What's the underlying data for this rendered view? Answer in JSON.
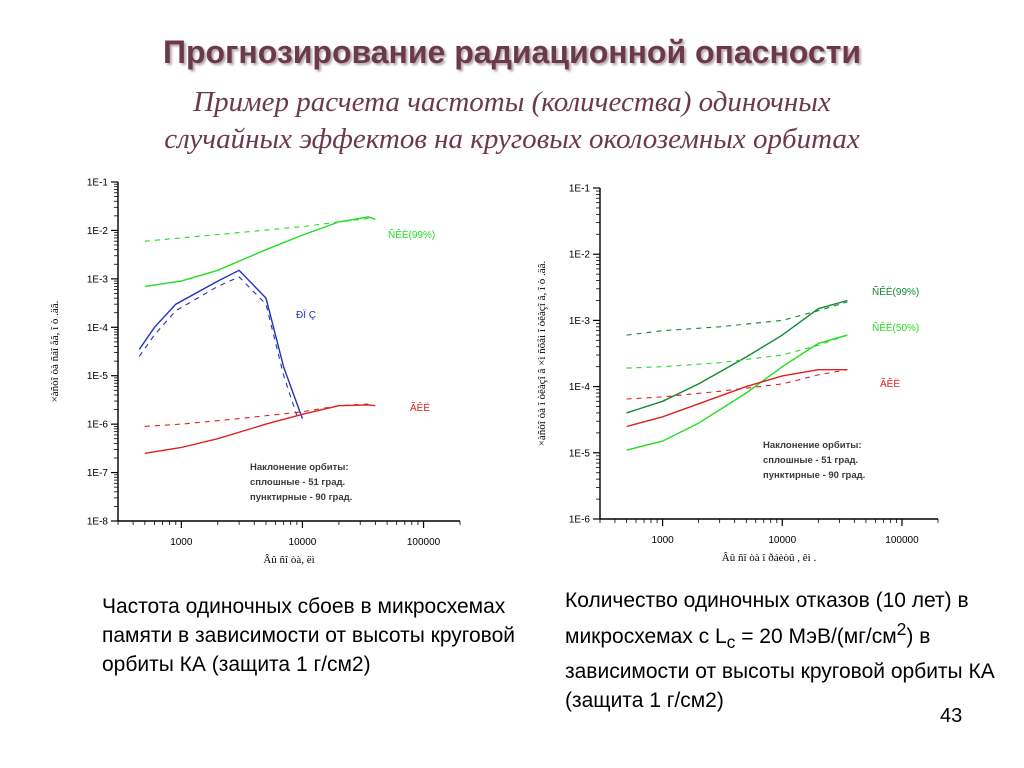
{
  "slide": {
    "title": "Прогнозирование радиационной опасности",
    "subtitle_line1": "Пример расчета частоты (количества) одиночных",
    "subtitle_line2": "случайных эффектов на круговых околоземных орбитах",
    "page_number": "43"
  },
  "captions": {
    "left": "Частота одиночных сбоев в микросхемах памяти в зависимости от высоты круговой орбиты КА (защита 1 г/см2)",
    "right_part1": "Количество одиночных отказов (10 лет) в микросхемах с L",
    "right_sub": "c",
    "right_part2": " = 20 МэВ/(мг/см",
    "right_sup": "2",
    "right_part3": ")  в зависимости от высоты круговой орбиты КА (защита 1 г/см2)"
  },
  "colors": {
    "title": "#6b3a4a",
    "green": "#22dd22",
    "dark_green": "#118833",
    "blue": "#2233bb",
    "red": "#e02020"
  },
  "chart_data": [
    {
      "type": "line",
      "x_scale": "log",
      "y_scale": "log",
      "xlim": [
        300,
        200000
      ],
      "ylim": [
        1e-08,
        0.1
      ],
      "x_ticks": [
        "1000",
        "10000",
        "100000"
      ],
      "y_ticks": [
        "1E-1",
        "1E-2",
        "1E-3",
        "1E-4",
        "1E-5",
        "1E-6",
        "1E-7",
        "1E-8"
      ],
      "xlabel": "Âû ñî òà, ëì",
      "ylabel": "×àñòî òà ñáî åâ, î ò .äâ.",
      "note_lines": [
        "Наклонение орбиты:",
        "сплошные - 51 град.",
        "пунктирные - 90 град."
      ],
      "series": [
        {
          "name": "ÑÊË(99%)",
          "style": "solid",
          "color": "#22dd22",
          "x": [
            500,
            1000,
            2000,
            5000,
            10000,
            20000,
            35000,
            40000
          ],
          "y": [
            0.0007,
            0.0009,
            0.0015,
            0.004,
            0.008,
            0.015,
            0.019,
            0.017
          ]
        },
        {
          "name": "",
          "style": "dashed",
          "color": "#22dd22",
          "x": [
            500,
            1000,
            3000,
            10000,
            25000,
            37000
          ],
          "y": [
            0.006,
            0.007,
            0.009,
            0.012,
            0.016,
            0.018
          ]
        },
        {
          "name": "ÐÏ Ç",
          "style": "solid",
          "color": "#2233bb",
          "x": [
            450,
            600,
            900,
            2000,
            3000,
            5000,
            7000,
            10000
          ],
          "y": [
            3.5e-05,
            0.0001,
            0.0003,
            0.0009,
            0.0015,
            0.0004,
            1.5e-05,
            1.3e-06
          ]
        },
        {
          "name": "",
          "style": "dashed",
          "color": "#2233bb",
          "x": [
            450,
            600,
            900,
            2000,
            3000,
            5000,
            7000,
            9000
          ],
          "y": [
            2.5e-05,
            7e-05,
            0.00022,
            0.0007,
            0.0011,
            0.0003,
            1e-05,
            1.5e-06
          ]
        },
        {
          "name": "ÃÊË",
          "style": "solid",
          "color": "#e02020",
          "x": [
            500,
            1000,
            2000,
            5000,
            10000,
            20000,
            35000,
            40000
          ],
          "y": [
            2.5e-07,
            3.3e-07,
            5e-07,
            1e-06,
            1.6e-06,
            2.4e-06,
            2.5e-06,
            2.4e-06
          ]
        },
        {
          "name": "",
          "style": "dashed",
          "color": "#e02020",
          "x": [
            500,
            1000,
            3000,
            10000,
            20000,
            35000
          ],
          "y": [
            9e-07,
            1e-06,
            1.3e-06,
            1.8e-06,
            2.4e-06,
            2.6e-06
          ]
        }
      ]
    },
    {
      "type": "line",
      "x_scale": "log",
      "y_scale": "log",
      "xlim": [
        300,
        200000
      ],
      "ylim": [
        1e-06,
        0.1
      ],
      "x_ticks": [
        "1000",
        "10000",
        "100000"
      ],
      "y_ticks": [
        "1E-1",
        "1E-2",
        "1E-3",
        "1E-4",
        "1E-5",
        "1E-6"
      ],
      "xlabel": "Âû ñî òà î ðáèòû , êì .",
      "ylabel": "×àñòî òà î òêàçî â ×ì ñõåì î òêàçî â, î ò .äâ.",
      "note_lines": [
        "Наклонение орбиты:",
        "сплошные - 51 град.",
        "пунктирные - 90 град."
      ],
      "series": [
        {
          "name": "ÑÊË(99%)",
          "style": "solid",
          "color": "#118833",
          "x": [
            500,
            1000,
            2000,
            5000,
            10000,
            20000,
            35000
          ],
          "y": [
            4e-05,
            6e-05,
            0.00011,
            0.00028,
            0.0006,
            0.0015,
            0.002
          ]
        },
        {
          "name": "",
          "style": "dashed",
          "color": "#118833",
          "x": [
            500,
            1000,
            3000,
            10000,
            20000,
            35000
          ],
          "y": [
            0.0006,
            0.0007,
            0.0008,
            0.001,
            0.0014,
            0.0019
          ]
        },
        {
          "name": "ÑÊË(50%)",
          "style": "solid",
          "color": "#22dd22",
          "x": [
            500,
            1000,
            2000,
            5000,
            10000,
            20000,
            35000
          ],
          "y": [
            1.1e-05,
            1.5e-05,
            2.8e-05,
            8e-05,
            0.0002,
            0.00045,
            0.0006
          ]
        },
        {
          "name": "",
          "style": "dashed",
          "color": "#22dd22",
          "x": [
            500,
            1000,
            3000,
            10000,
            20000,
            35000
          ],
          "y": [
            0.00019,
            0.0002,
            0.00023,
            0.0003,
            0.00042,
            0.0006
          ]
        },
        {
          "name": "ÃÊË",
          "style": "solid",
          "color": "#e02020",
          "x": [
            500,
            1000,
            2000,
            5000,
            10000,
            20000,
            35000
          ],
          "y": [
            2.5e-05,
            3.5e-05,
            5.5e-05,
            0.0001,
            0.000145,
            0.00018,
            0.00018
          ]
        },
        {
          "name": "",
          "style": "dashed",
          "color": "#e02020",
          "x": [
            500,
            1000,
            3000,
            10000,
            20000,
            35000
          ],
          "y": [
            6.5e-05,
            7e-05,
            8.5e-05,
            0.00011,
            0.00015,
            0.00018
          ]
        }
      ]
    }
  ]
}
